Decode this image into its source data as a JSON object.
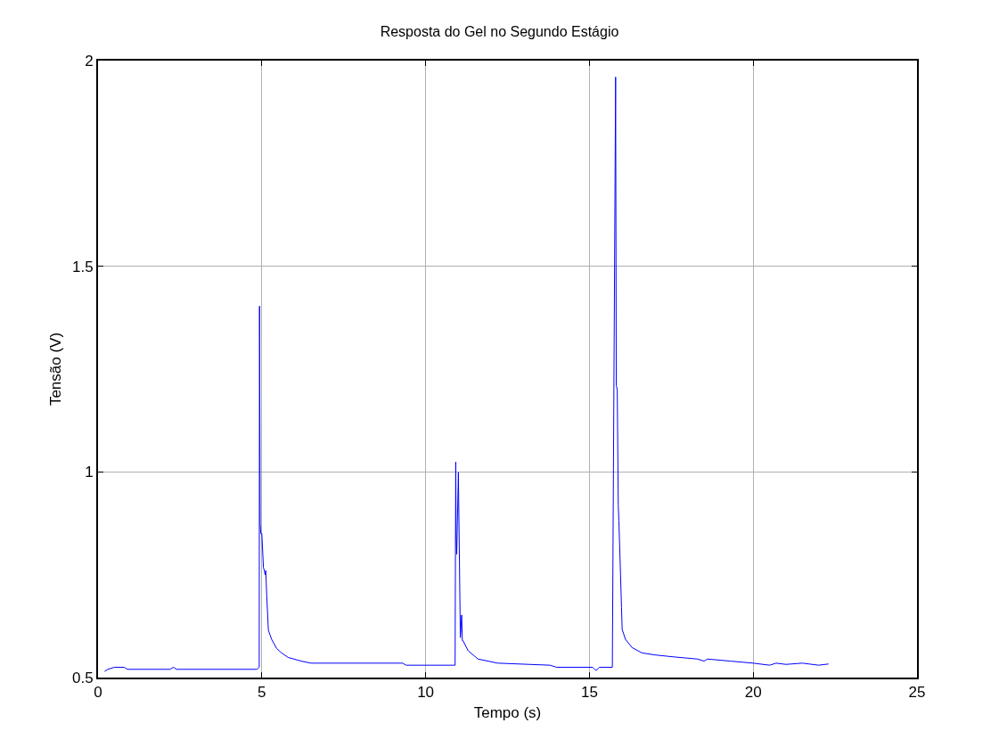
{
  "chart_data": {
    "type": "line",
    "title": "Resposta do Gel no Segundo Estágio",
    "xlabel": "Tempo (s)",
    "ylabel": "Tensão (V)",
    "xlim": [
      0,
      25
    ],
    "xticks": [
      0,
      5,
      10,
      15,
      20,
      25
    ],
    "ylim": [
      0.5,
      2
    ],
    "yticks": [
      0.5,
      1,
      1.5,
      2
    ],
    "grid": true,
    "marker": "none",
    "line_style": "solid",
    "series": [
      {
        "color": "#0000ff",
        "x": [
          0.2,
          0.3,
          0.5,
          0.8,
          0.9,
          2.2,
          2.3,
          2.4,
          4.85,
          4.92,
          4.93,
          4.95,
          4.97,
          5.0,
          5.05,
          5.08,
          5.1,
          5.12,
          5.15,
          5.2,
          5.3,
          5.45,
          5.6,
          5.8,
          6.2,
          6.5,
          9.3,
          9.4,
          10.9,
          10.92,
          10.93,
          10.95,
          11.0,
          11.06,
          11.1,
          11.12,
          11.14,
          11.3,
          11.6,
          12.2,
          13.8,
          14.0,
          15.1,
          15.2,
          15.3,
          15.7,
          15.8,
          15.82,
          15.85,
          15.88,
          15.9,
          15.95,
          15.98,
          16.0,
          16.1,
          16.3,
          16.6,
          17.0,
          17.6,
          18.3,
          18.5,
          18.6,
          19.3,
          20.0,
          20.5,
          20.7,
          21.0,
          21.5,
          22.0,
          22.3
        ],
        "values": [
          0.515,
          0.52,
          0.525,
          0.525,
          0.52,
          0.52,
          0.525,
          0.52,
          0.52,
          0.525,
          1.403,
          0.873,
          0.85,
          0.85,
          0.767,
          0.76,
          0.75,
          0.76,
          0.7,
          0.615,
          0.593,
          0.571,
          0.56,
          0.549,
          0.54,
          0.535,
          0.535,
          0.53,
          0.53,
          1.024,
          0.845,
          0.8,
          0.999,
          0.597,
          0.652,
          0.59,
          0.59,
          0.565,
          0.545,
          0.535,
          0.53,
          0.525,
          0.525,
          0.517,
          0.525,
          0.525,
          1.96,
          1.21,
          1.2,
          0.919,
          0.88,
          0.75,
          0.67,
          0.617,
          0.593,
          0.573,
          0.56,
          0.555,
          0.55,
          0.545,
          0.54,
          0.545,
          0.54,
          0.535,
          0.53,
          0.535,
          0.532,
          0.535,
          0.53,
          0.533
        ]
      }
    ]
  }
}
